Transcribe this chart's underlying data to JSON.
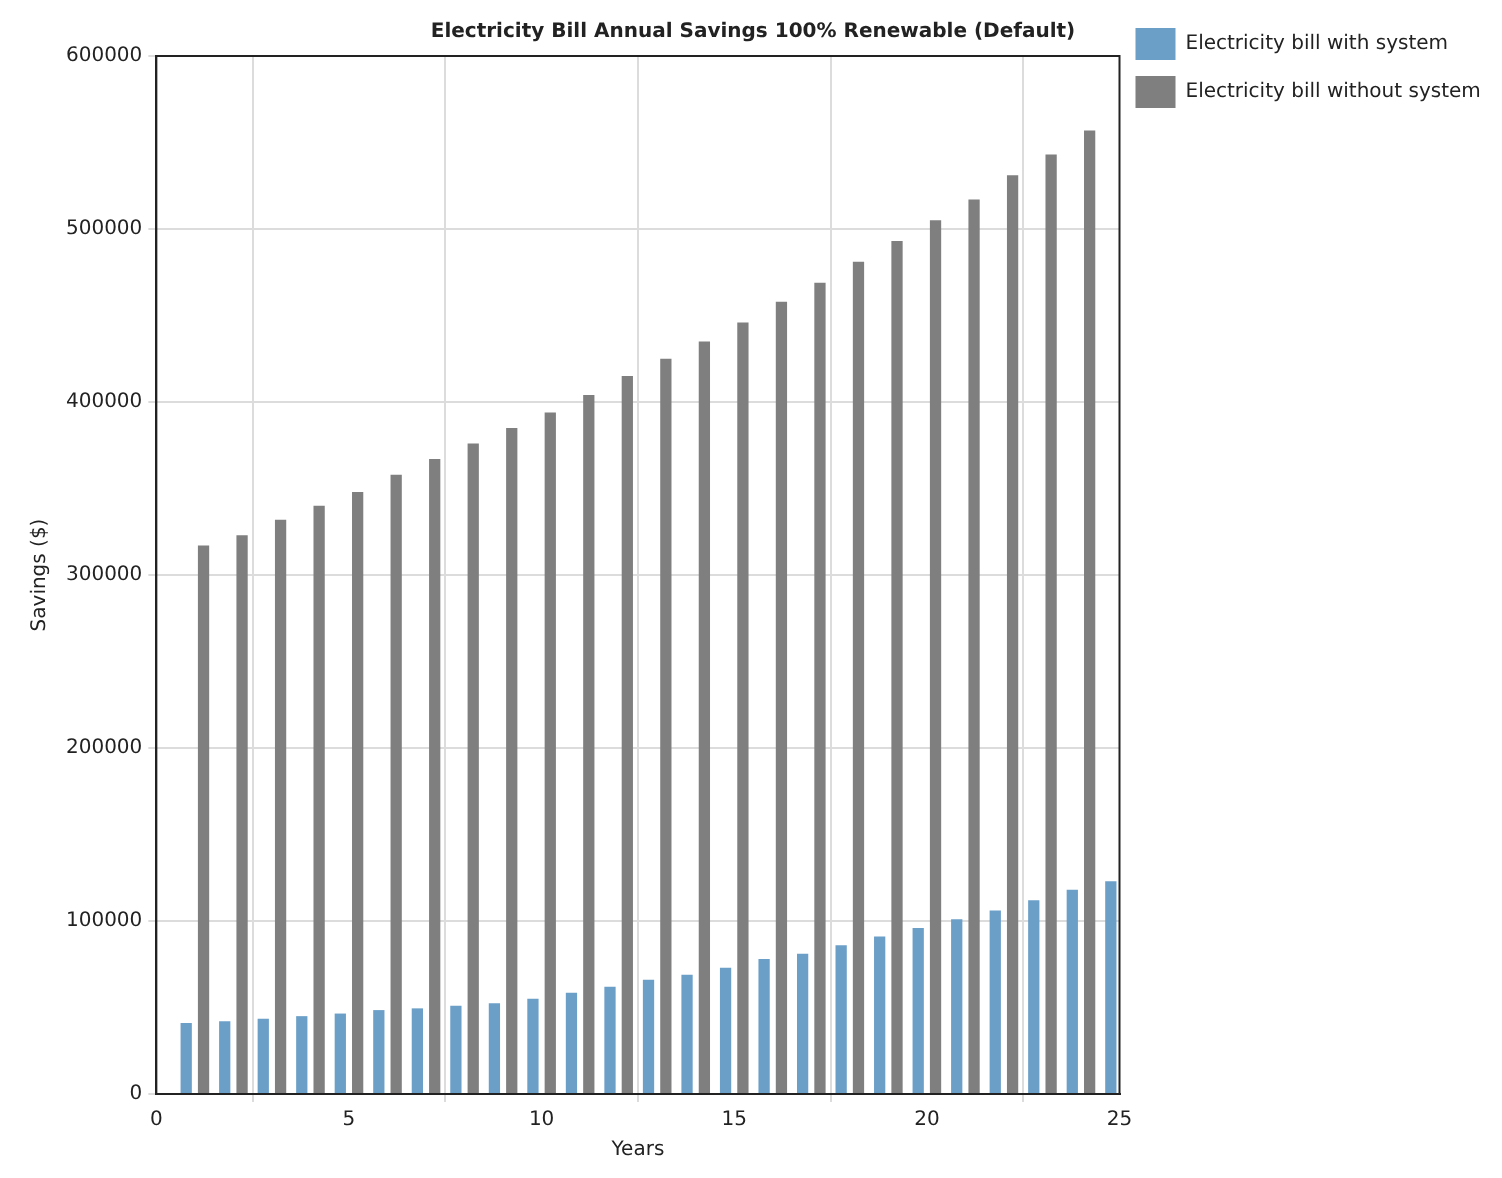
{
  "chart_data": {
    "type": "bar",
    "title": "Electricity Bill Annual Savings 100% Renewable (Default)",
    "xlabel": "Years",
    "ylabel": "Savings ($)",
    "x": [
      1,
      2,
      3,
      4,
      5,
      6,
      7,
      8,
      9,
      10,
      11,
      12,
      13,
      14,
      15,
      16,
      17,
      18,
      19,
      20,
      21,
      22,
      23,
      24,
      25
    ],
    "series": [
      {
        "name": "Electricity bill with system",
        "color": "#6b9fc7",
        "values": [
          41000,
          42000,
          43500,
          45000,
          46500,
          48500,
          49500,
          51000,
          52500,
          55000,
          58500,
          62000,
          66000,
          69000,
          73000,
          78000,
          81000,
          86000,
          91000,
          96000,
          101000,
          106000,
          112000,
          118000,
          123000
        ]
      },
      {
        "name": "Electricity bill without system",
        "color": "#7f7f7f",
        "values": [
          317000,
          323000,
          332000,
          340000,
          348000,
          358000,
          367000,
          376000,
          385000,
          394000,
          404000,
          415000,
          425000,
          435000,
          446000,
          458000,
          469000,
          481000,
          493000,
          505000,
          517000,
          531000,
          543000,
          557000,
          null
        ]
      }
    ],
    "xlim": [
      0,
      25
    ],
    "xticks": [
      0,
      5,
      10,
      15,
      20,
      25
    ],
    "ylim": [
      0,
      600000
    ],
    "yticks": [
      0,
      100000,
      200000,
      300000,
      400000,
      500000,
      600000
    ],
    "grid": true,
    "legend": "top right"
  }
}
